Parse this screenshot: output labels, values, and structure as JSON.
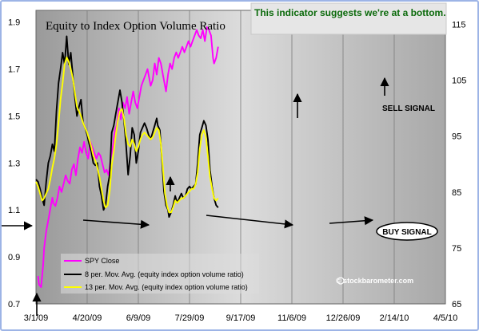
{
  "chart_data": {
    "type": "line",
    "title": "Equity to Index Option Volume Ratio",
    "note": "This indicator suggests we're at a bottom.",
    "watermark": "© stockbarometer.com",
    "x_ticks": [
      "3/1/09",
      "4/20/09",
      "6/9/09",
      "7/29/09",
      "9/17/09",
      "11/6/09",
      "12/26/09",
      "2/14/10",
      "4/5/10"
    ],
    "left_axis": {
      "ticks": [
        "0.7",
        "0.9",
        "1.1",
        "1.3",
        "1.5",
        "1.7",
        "1.9"
      ],
      "ylim": [
        0.7,
        1.95
      ]
    },
    "right_axis": {
      "ticks": [
        "65",
        "75",
        "85",
        "95",
        "105",
        "115"
      ],
      "ylim": [
        65,
        117.5
      ]
    },
    "series": [
      {
        "name": "SPY Close",
        "axis": "right",
        "color": "#ff00ff",
        "points": [
          [
            2,
            70
          ],
          [
            3,
            68.5
          ],
          [
            5,
            68
          ],
          [
            7,
            72
          ],
          [
            8,
            75
          ],
          [
            10,
            78
          ],
          [
            12,
            80
          ],
          [
            14,
            82
          ],
          [
            16,
            84
          ],
          [
            17,
            83
          ],
          [
            19,
            82.5
          ],
          [
            21,
            84
          ],
          [
            23,
            86
          ],
          [
            25,
            85
          ],
          [
            27,
            86.5
          ],
          [
            29,
            88
          ],
          [
            31,
            87
          ],
          [
            33,
            86.5
          ],
          [
            35,
            89
          ],
          [
            37,
            90
          ],
          [
            39,
            88
          ],
          [
            41,
            91
          ],
          [
            43,
            93
          ],
          [
            45,
            92
          ],
          [
            47,
            94
          ],
          [
            49,
            92
          ],
          [
            51,
            91
          ],
          [
            53,
            94
          ],
          [
            55,
            93
          ],
          [
            57,
            92
          ],
          [
            59,
            91
          ],
          [
            61,
            92
          ],
          [
            63,
            91.5
          ],
          [
            65,
            90
          ],
          [
            67,
            88.5
          ],
          [
            69,
            89
          ],
          [
            71,
            88
          ],
          [
            73,
            91
          ],
          [
            75,
            93
          ],
          [
            77,
            96
          ],
          [
            79,
            97
          ],
          [
            81,
            100
          ],
          [
            83,
            98
          ],
          [
            85,
            101
          ],
          [
            87,
            100
          ],
          [
            89,
            102
          ],
          [
            91,
            99
          ],
          [
            93,
            101
          ],
          [
            95,
            103
          ],
          [
            97,
            101
          ],
          [
            99,
            100
          ],
          [
            101,
            102
          ],
          [
            103,
            104
          ],
          [
            105,
            105
          ],
          [
            107,
            106
          ],
          [
            109,
            107
          ],
          [
            111,
            105
          ],
          [
            112,
            104
          ],
          [
            114,
            105
          ],
          [
            116,
            108
          ],
          [
            118,
            106
          ],
          [
            120,
            109
          ],
          [
            122,
            108
          ],
          [
            124,
            106
          ],
          [
            126,
            104
          ],
          [
            127,
            103
          ],
          [
            129,
            106
          ],
          [
            131,
            108
          ],
          [
            133,
            107
          ],
          [
            135,
            109
          ],
          [
            137,
            110
          ],
          [
            139,
            109
          ],
          [
            141,
            110
          ],
          [
            143,
            111
          ],
          [
            145,
            110
          ],
          [
            147,
            111
          ],
          [
            149,
            112
          ],
          [
            151,
            111
          ],
          [
            153,
            112
          ],
          [
            155,
            113
          ],
          [
            157,
            114
          ],
          [
            159,
            113
          ],
          [
            161,
            112.5
          ],
          [
            163,
            114
          ],
          [
            165,
            112
          ],
          [
            167,
            114.5
          ],
          [
            169,
            114
          ],
          [
            171,
            113
          ],
          [
            173,
            109
          ],
          [
            174,
            108
          ],
          [
            176,
            109
          ],
          [
            178,
            111
          ]
        ]
      },
      {
        "name": "8 per. Mov. Avg. (equity index option volume ratio)",
        "axis": "left",
        "color": "#000000",
        "points": [
          [
            0,
            1.23
          ],
          [
            2,
            1.22
          ],
          [
            4,
            1.19
          ],
          [
            6,
            1.15
          ],
          [
            8,
            1.12
          ],
          [
            10,
            1.22
          ],
          [
            12,
            1.3
          ],
          [
            14,
            1.33
          ],
          [
            16,
            1.38
          ],
          [
            18,
            1.35
          ],
          [
            20,
            1.52
          ],
          [
            22,
            1.64
          ],
          [
            24,
            1.7
          ],
          [
            26,
            1.77
          ],
          [
            28,
            1.72
          ],
          [
            30,
            1.84
          ],
          [
            32,
            1.72
          ],
          [
            34,
            1.77
          ],
          [
            36,
            1.67
          ],
          [
            38,
            1.58
          ],
          [
            40,
            1.5
          ],
          [
            42,
            1.54
          ],
          [
            44,
            1.57
          ],
          [
            46,
            1.47
          ],
          [
            48,
            1.45
          ],
          [
            50,
            1.42
          ],
          [
            52,
            1.38
          ],
          [
            54,
            1.35
          ],
          [
            56,
            1.3
          ],
          [
            58,
            1.29
          ],
          [
            60,
            1.3
          ],
          [
            62,
            1.2
          ],
          [
            64,
            1.16
          ],
          [
            66,
            1.1
          ],
          [
            68,
            1.12
          ],
          [
            70,
            1.2
          ],
          [
            72,
            1.25
          ],
          [
            74,
            1.43
          ],
          [
            76,
            1.46
          ],
          [
            78,
            1.51
          ],
          [
            80,
            1.56
          ],
          [
            82,
            1.61
          ],
          [
            84,
            1.56
          ],
          [
            86,
            1.48
          ],
          [
            88,
            1.38
          ],
          [
            90,
            1.25
          ],
          [
            92,
            1.33
          ],
          [
            94,
            1.45
          ],
          [
            96,
            1.42
          ],
          [
            98,
            1.3
          ],
          [
            100,
            1.35
          ],
          [
            102,
            1.43
          ],
          [
            104,
            1.45
          ],
          [
            106,
            1.47
          ],
          [
            108,
            1.45
          ],
          [
            110,
            1.42
          ],
          [
            112,
            1.4
          ],
          [
            114,
            1.43
          ],
          [
            116,
            1.46
          ],
          [
            118,
            1.49
          ],
          [
            119,
            1.46
          ],
          [
            121,
            1.44
          ],
          [
            123,
            1.32
          ],
          [
            125,
            1.18
          ],
          [
            127,
            1.12
          ],
          [
            129,
            1.1
          ],
          [
            130,
            1.07
          ],
          [
            132,
            1.09
          ],
          [
            134,
            1.12
          ],
          [
            136,
            1.16
          ],
          [
            138,
            1.13
          ],
          [
            140,
            1.15
          ],
          [
            142,
            1.17
          ],
          [
            144,
            1.15
          ],
          [
            146,
            1.16
          ],
          [
            148,
            1.19
          ],
          [
            150,
            1.2
          ],
          [
            152,
            1.19
          ],
          [
            154,
            1.2
          ],
          [
            156,
            1.21
          ],
          [
            158,
            1.3
          ],
          [
            160,
            1.42
          ],
          [
            162,
            1.45
          ],
          [
            164,
            1.48
          ],
          [
            166,
            1.46
          ],
          [
            168,
            1.4
          ],
          [
            170,
            1.27
          ],
          [
            172,
            1.2
          ],
          [
            174,
            1.15
          ],
          [
            176,
            1.12
          ],
          [
            178,
            1.11
          ]
        ]
      },
      {
        "name": "13 per. Mov. Avg. (equity index option volume ratio)",
        "axis": "left",
        "color": "#ffff00",
        "points": [
          [
            0,
            1.22
          ],
          [
            2,
            1.2
          ],
          [
            4,
            1.17
          ],
          [
            6,
            1.14
          ],
          [
            8,
            1.15
          ],
          [
            10,
            1.17
          ],
          [
            12,
            1.19
          ],
          [
            14,
            1.23
          ],
          [
            16,
            1.28
          ],
          [
            18,
            1.32
          ],
          [
            20,
            1.38
          ],
          [
            22,
            1.47
          ],
          [
            24,
            1.57
          ],
          [
            26,
            1.64
          ],
          [
            28,
            1.72
          ],
          [
            30,
            1.75
          ],
          [
            32,
            1.73
          ],
          [
            34,
            1.7
          ],
          [
            36,
            1.66
          ],
          [
            38,
            1.6
          ],
          [
            40,
            1.54
          ],
          [
            42,
            1.52
          ],
          [
            44,
            1.5
          ],
          [
            46,
            1.47
          ],
          [
            48,
            1.45
          ],
          [
            50,
            1.43
          ],
          [
            52,
            1.4
          ],
          [
            54,
            1.37
          ],
          [
            56,
            1.33
          ],
          [
            58,
            1.31
          ],
          [
            60,
            1.28
          ],
          [
            62,
            1.24
          ],
          [
            64,
            1.19
          ],
          [
            66,
            1.14
          ],
          [
            68,
            1.11
          ],
          [
            70,
            1.12
          ],
          [
            72,
            1.18
          ],
          [
            74,
            1.29
          ],
          [
            76,
            1.35
          ],
          [
            78,
            1.42
          ],
          [
            80,
            1.48
          ],
          [
            82,
            1.52
          ],
          [
            84,
            1.53
          ],
          [
            86,
            1.49
          ],
          [
            88,
            1.42
          ],
          [
            90,
            1.38
          ],
          [
            92,
            1.37
          ],
          [
            94,
            1.4
          ],
          [
            96,
            1.38
          ],
          [
            98,
            1.35
          ],
          [
            100,
            1.37
          ],
          [
            102,
            1.4
          ],
          [
            104,
            1.42
          ],
          [
            106,
            1.43
          ],
          [
            108,
            1.42
          ],
          [
            110,
            1.41
          ],
          [
            112,
            1.4
          ],
          [
            114,
            1.41
          ],
          [
            116,
            1.43
          ],
          [
            118,
            1.45
          ],
          [
            120,
            1.44
          ],
          [
            122,
            1.38
          ],
          [
            124,
            1.28
          ],
          [
            126,
            1.17
          ],
          [
            128,
            1.12
          ],
          [
            130,
            1.09
          ],
          [
            132,
            1.09
          ],
          [
            134,
            1.11
          ],
          [
            136,
            1.14
          ],
          [
            138,
            1.13
          ],
          [
            140,
            1.14
          ],
          [
            142,
            1.15
          ],
          [
            144,
            1.15
          ],
          [
            146,
            1.16
          ],
          [
            148,
            1.17
          ],
          [
            150,
            1.18
          ],
          [
            152,
            1.19
          ],
          [
            154,
            1.19
          ],
          [
            156,
            1.21
          ],
          [
            158,
            1.26
          ],
          [
            160,
            1.36
          ],
          [
            162,
            1.42
          ],
          [
            164,
            1.44
          ],
          [
            166,
            1.41
          ],
          [
            168,
            1.33
          ],
          [
            170,
            1.24
          ],
          [
            172,
            1.19
          ],
          [
            174,
            1.15
          ],
          [
            176,
            1.14
          ],
          [
            178,
            1.15
          ]
        ]
      }
    ],
    "annotations": [
      {
        "text": "SELL SIGNAL"
      },
      {
        "text": "BUY SIGNAL"
      }
    ],
    "grid": true,
    "legend": "bottom-left"
  }
}
